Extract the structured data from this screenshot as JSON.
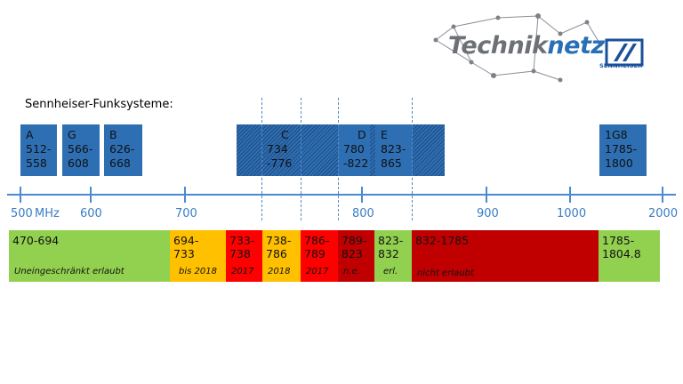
{
  "logo": {
    "text_part1": "Techniknetz",
    "text_part2": "",
    "sennheiser": "SENNHEISER"
  },
  "title": "Sennheiser-Funksysteme:",
  "systems": [
    {
      "name": "A",
      "l1": "512-",
      "l2": "558"
    },
    {
      "name": "G",
      "l1": "566-",
      "l2": "608"
    },
    {
      "name": "B",
      "l1": "626-",
      "l2": "668"
    },
    {
      "name": "C",
      "l1": "734",
      "l2": "-776"
    },
    {
      "name": "D",
      "l1": "780",
      "l2": "-822"
    },
    {
      "name": "E",
      "l1": "823-",
      "l2": "865"
    },
    {
      "name": "1G8",
      "l1": "1785-",
      "l2": "1800"
    }
  ],
  "axis": {
    "ticks": [
      "500",
      "600",
      "700",
      "800",
      "900",
      "1000",
      "2000"
    ],
    "unit": "MHz"
  },
  "bands": [
    {
      "range": "470-694",
      "range2": "",
      "note": "Uneingeschränkt erlaubt",
      "color": "#92d050"
    },
    {
      "range": "694-",
      "range2": "733",
      "note": "bis 2018",
      "color": "#ffc000"
    },
    {
      "range": "733-",
      "range2": "738",
      "note": "2017",
      "color": "#ff0000"
    },
    {
      "range": "738-",
      "range2": "786",
      "note": "2018",
      "color": "#ffc000"
    },
    {
      "range": "786-",
      "range2": "789",
      "note": "2017",
      "color": "#ff0000"
    },
    {
      "range": "789-",
      "range2": "823",
      "note": "n.e.",
      "color": "#c00000"
    },
    {
      "range": "823-",
      "range2": "832",
      "note": "erl.",
      "color": "#92d050"
    },
    {
      "range": "832-1785",
      "range2": "",
      "note": "nicht erlaubt",
      "color": "#c00000"
    },
    {
      "range": "1785-",
      "range2": "1804.8",
      "note": "",
      "color": "#92d050"
    }
  ]
}
